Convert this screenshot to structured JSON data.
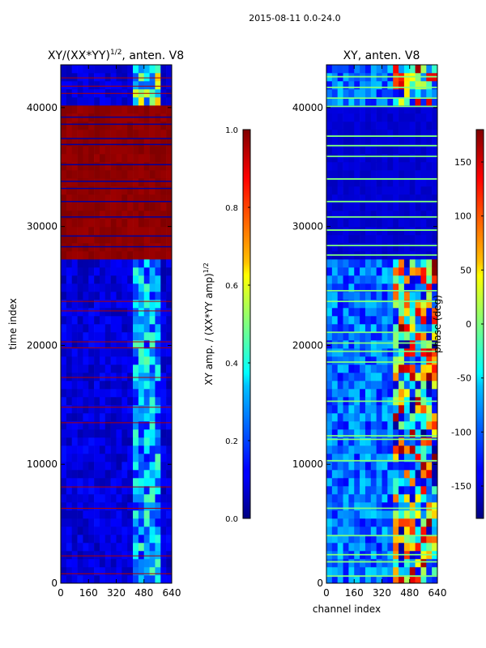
{
  "figure_title": "2015-08-11 0.0-24.0",
  "chart_data": [
    {
      "type": "heatmap",
      "title_main": "XY/(XX*YY)",
      "title_sup": "1/2",
      "title_rest": ", anten. V8",
      "xlabel": "",
      "ylabel": "time index",
      "xlim": [
        0,
        640
      ],
      "ylim": [
        0,
        43600
      ],
      "xticks": [
        0,
        160,
        320,
        480,
        640
      ],
      "yticks": [
        0,
        10000,
        20000,
        30000,
        40000
      ],
      "colorbar": {
        "label_main": "XY amp. / (XX*YY amp)",
        "label_sup": "1/2",
        "range": [
          0,
          1
        ],
        "ticks": [
          "0.0",
          "0.2",
          "0.4",
          "0.6",
          "0.8",
          "1.0"
        ]
      },
      "saturated_time_band": [
        27400,
        40000
      ],
      "active_channel_band": [
        410,
        590
      ]
    },
    {
      "type": "heatmap",
      "title": "XY, anten. V8",
      "xlabel": "channel index",
      "ylabel": "",
      "xlim": [
        0,
        640
      ],
      "ylim": [
        0,
        43600
      ],
      "xticks": [
        0,
        160,
        320,
        480,
        640
      ],
      "yticks": [
        0,
        10000,
        20000,
        30000,
        40000
      ],
      "colorbar": {
        "label": "phase (deg)",
        "range": [
          -180,
          180
        ],
        "ticks": [
          "-150",
          "-100",
          "-50",
          "0",
          "50",
          "100",
          "150"
        ]
      },
      "low_amp_time_band": [
        27400,
        40000
      ],
      "active_channel_band": [
        390,
        640
      ]
    }
  ]
}
